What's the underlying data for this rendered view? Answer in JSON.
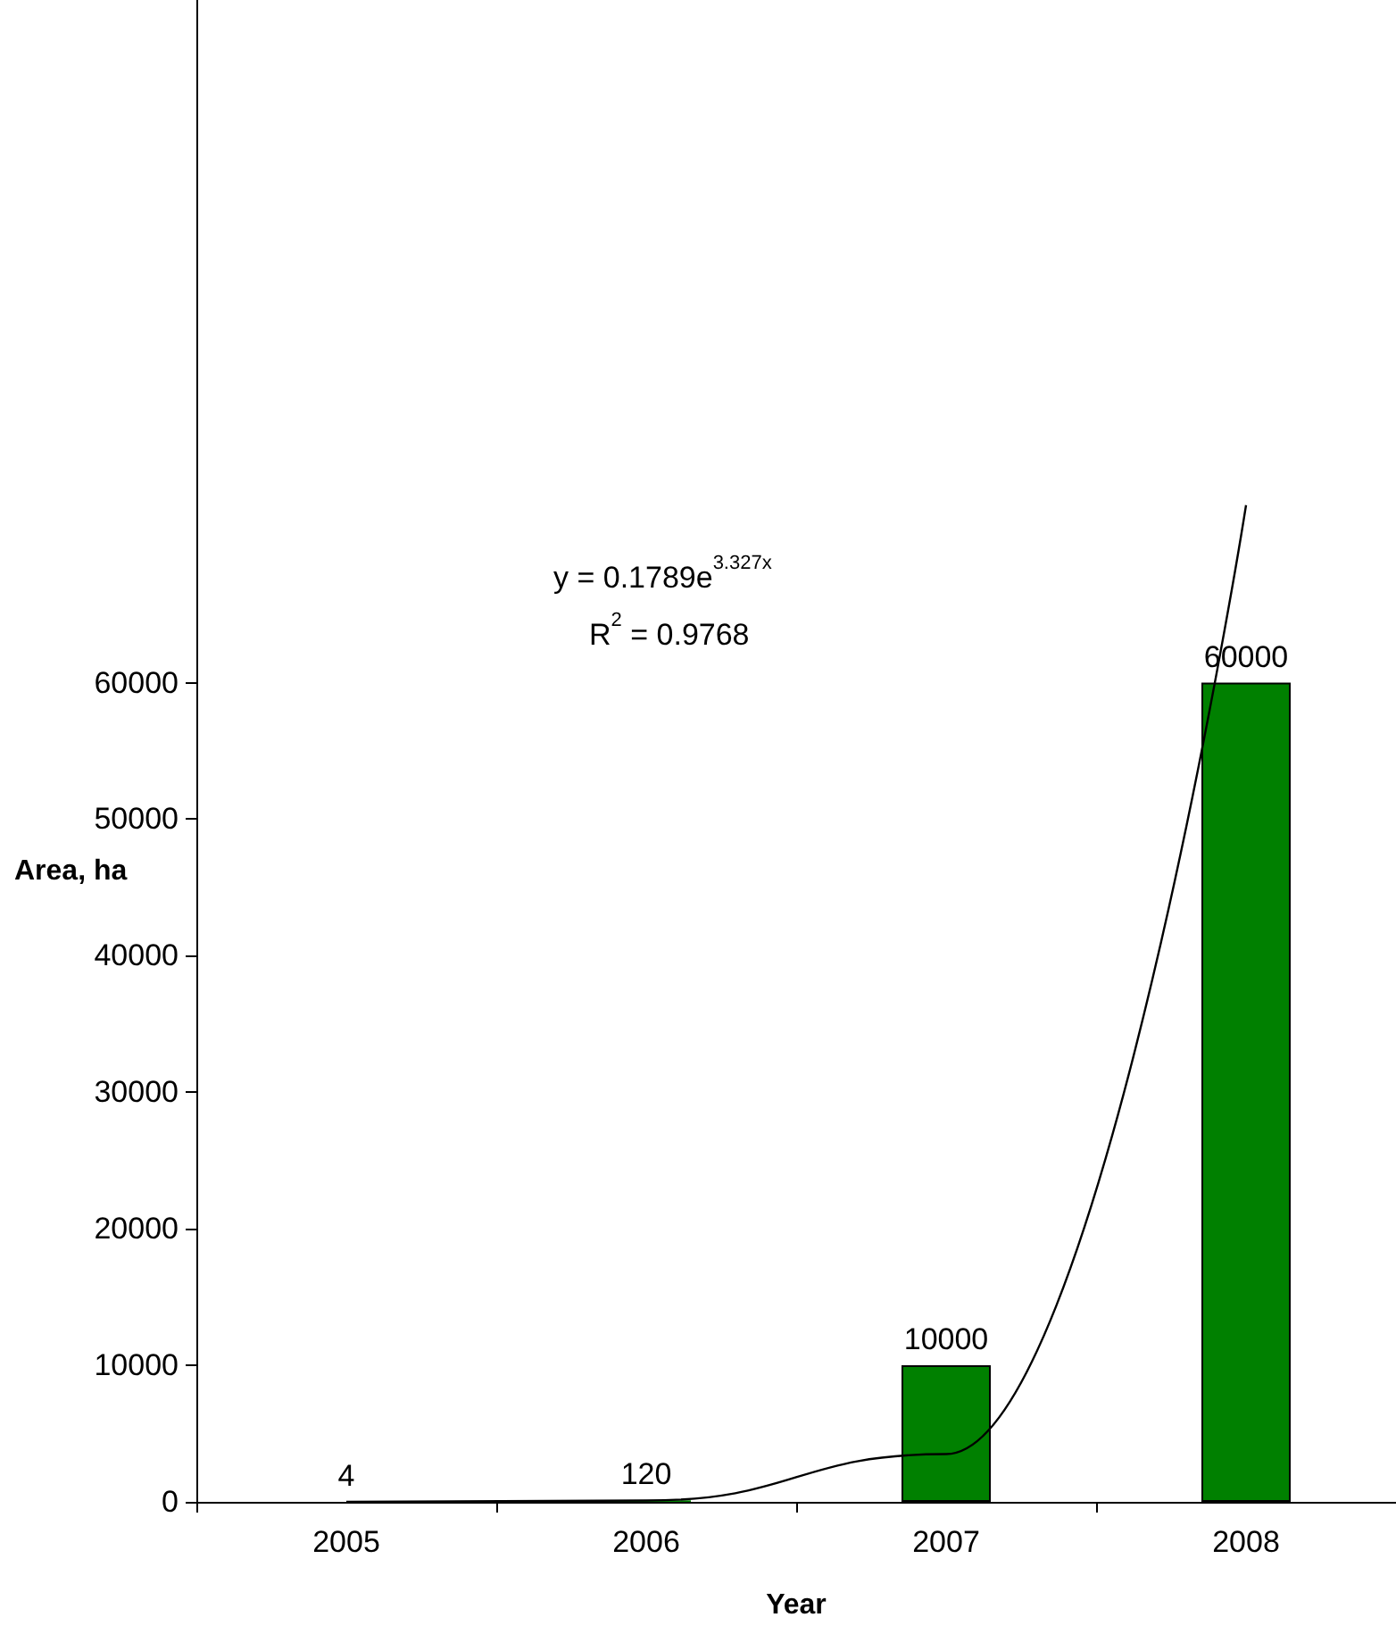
{
  "chart_data": {
    "type": "bar",
    "xlabel": "Year",
    "ylabel": "Area, ha",
    "categories": [
      "2005",
      "2006",
      "2007",
      "2008"
    ],
    "series": [
      {
        "color": "#008000",
        "values": [
          4,
          120,
          10000,
          60000
        ],
        "value_labels": [
          "4",
          "120",
          "10000",
          "60000"
        ]
      },
      {
        "type": "line",
        "color": "#000000",
        "values": [
          0,
          100,
          3500,
          73000
        ]
      }
    ],
    "ylim": [
      0,
      110000
    ],
    "yticks": [
      0,
      10000,
      20000,
      30000,
      40000,
      50000,
      60000
    ],
    "annotations": [
      "y = 0.1789e$^{3.327x}$",
      "R$^{2}$ = 0.9768"
    ],
    "grid": false,
    "marker": "none",
    "line_style": "solid"
  }
}
